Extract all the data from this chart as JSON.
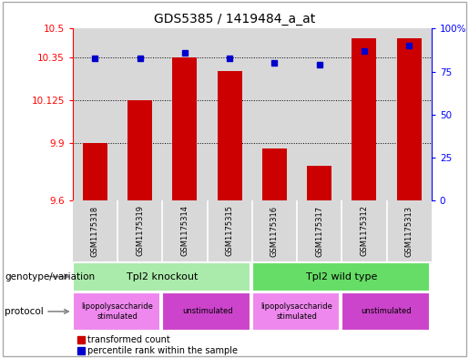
{
  "title": "GDS5385 / 1419484_a_at",
  "samples": [
    "GSM1175318",
    "GSM1175319",
    "GSM1175314",
    "GSM1175315",
    "GSM1175316",
    "GSM1175317",
    "GSM1175312",
    "GSM1175313"
  ],
  "red_values": [
    9.9,
    10.125,
    10.35,
    10.28,
    9.87,
    9.78,
    10.45,
    10.45
  ],
  "blue_values": [
    83,
    83,
    86,
    83,
    80,
    79,
    87,
    90
  ],
  "ylim_left": [
    9.6,
    10.5
  ],
  "ylim_right": [
    0,
    100
  ],
  "yticks_left": [
    9.6,
    9.9,
    10.125,
    10.35,
    10.5
  ],
  "yticks_right": [
    0,
    25,
    50,
    75,
    100
  ],
  "ytick_labels_left": [
    "9.6",
    "9.9",
    "10.125",
    "10.35",
    "10.5"
  ],
  "ytick_labels_right": [
    "0",
    "25",
    "50",
    "75",
    "100%"
  ],
  "hlines": [
    9.9,
    10.125,
    10.35
  ],
  "bar_color": "#cc0000",
  "dot_color": "#0000cc",
  "bg_color": "#d8d8d8",
  "genotype_groups": [
    {
      "label": "Tpl2 knockout",
      "start": 0,
      "end": 4,
      "color": "#aaeaaa"
    },
    {
      "label": "Tpl2 wild type",
      "start": 4,
      "end": 8,
      "color": "#66dd66"
    }
  ],
  "protocol_groups": [
    {
      "label": "lipopolysaccharide\nstimulated",
      "start": 0,
      "end": 2,
      "color": "#ee88ee"
    },
    {
      "label": "unstimulated",
      "start": 2,
      "end": 4,
      "color": "#cc44cc"
    },
    {
      "label": "lipopolysaccharide\nstimulated",
      "start": 4,
      "end": 6,
      "color": "#ee88ee"
    },
    {
      "label": "unstimulated",
      "start": 6,
      "end": 8,
      "color": "#cc44cc"
    }
  ],
  "legend_red_label": "transformed count",
  "legend_blue_label": "percentile rank within the sample",
  "label_genotype": "genotype/variation",
  "label_protocol": "protocol",
  "fig_width": 5.15,
  "fig_height": 3.93,
  "fig_dpi": 100
}
